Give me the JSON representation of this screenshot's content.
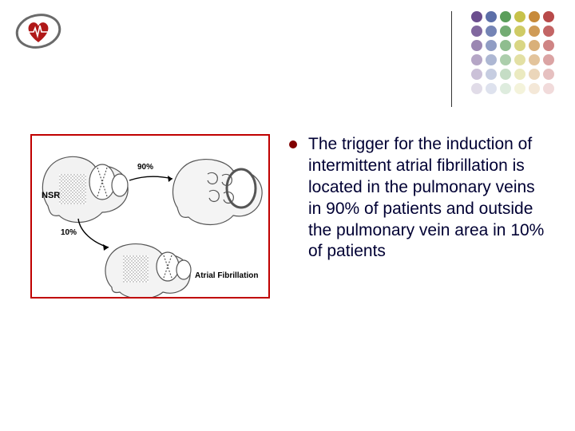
{
  "slide": {
    "bullet_text": "The trigger for the induction of intermittent atrial fibrillation is located in the pulmonary veins in 90% of patients and outside the pulmonary vein area in 10% of patients",
    "bullet_color": "#800000",
    "text_color": "#000033",
    "font_size_pt": 16
  },
  "figure": {
    "border_color": "#c00000",
    "background": "#ffffff",
    "labels": {
      "nsr": "NSR",
      "ninety": "90%",
      "ten": "10%",
      "af": "Atrial Fibrillation"
    },
    "label_font_size": 9
  },
  "logo": {
    "ring_color": "#6a6a6a",
    "heart_color": "#b01818",
    "trace_color": "#ffffff"
  },
  "dot_decoration": {
    "column_colors": [
      "#6b4e8e",
      "#5c6fa8",
      "#5a9e5a",
      "#c7c24a",
      "#c78a3a",
      "#b84a4a"
    ],
    "row_alpha": [
      1.0,
      0.85,
      0.68,
      0.5,
      0.35,
      0.2
    ],
    "divider_color": "#333333"
  }
}
